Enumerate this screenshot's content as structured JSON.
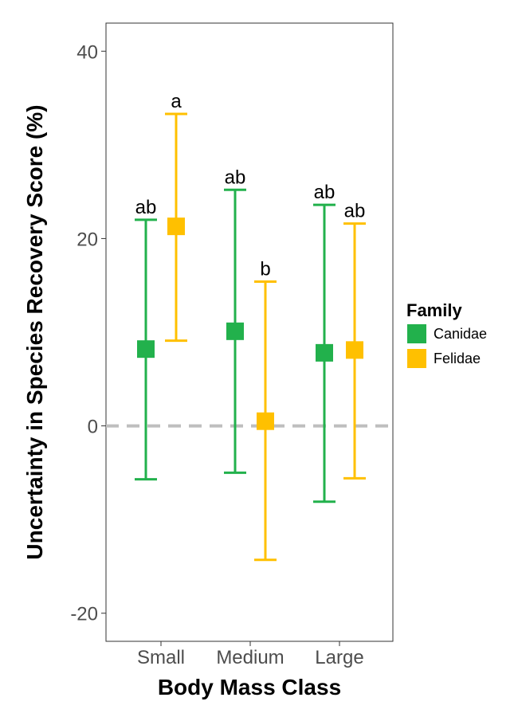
{
  "chart_data": {
    "type": "errorbar",
    "title": "",
    "xlabel": "Body Mass Class",
    "ylabel": "Uncertainty in Species Recovery Score (%)",
    "categories": [
      "Small",
      "Medium",
      "Large"
    ],
    "ylim": [
      -23,
      43
    ],
    "yticks": [
      40,
      20,
      0,
      -20
    ],
    "ytick_labels": [
      "40",
      "20",
      "0",
      "-20"
    ],
    "reference_line": {
      "y": 0,
      "style": "dashed",
      "color": "#bebebe"
    },
    "grid": false,
    "legend": {
      "title": "Family",
      "placement": "right"
    },
    "series": [
      {
        "name": "Canidae",
        "color": "#22b14c",
        "values": [
          8.2,
          10.1,
          7.8
        ],
        "lower": [
          -5.7,
          -5.0,
          -8.1
        ],
        "upper": [
          22.0,
          25.2,
          23.6
        ],
        "labels": [
          "ab",
          "ab",
          "ab"
        ]
      },
      {
        "name": "Felidae",
        "color": "#ffc000",
        "values": [
          21.3,
          0.5,
          8.1
        ],
        "lower": [
          9.1,
          -14.3,
          -5.6
        ],
        "upper": [
          33.3,
          15.4,
          21.6
        ],
        "labels": [
          "a",
          "b",
          "ab"
        ]
      }
    ]
  }
}
